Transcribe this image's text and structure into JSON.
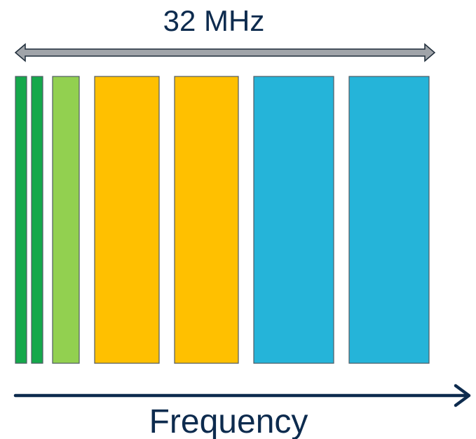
{
  "bandwidth_label": "32 MHz",
  "axis_label": "Frequency",
  "colors": {
    "text": "#0d2b4e",
    "bandwidth_arrow": "#a0a4a9",
    "frequency_arrow": "#0d2b4e",
    "block_stroke": "#4f5a63"
  },
  "channels": [
    {
      "color": "#15a84b"
    },
    {
      "color": "#15a84b"
    },
    {
      "color": "#92d050"
    },
    {
      "color": "#ffc000"
    },
    {
      "color": "#ffc000"
    },
    {
      "color": "#25b4d9"
    },
    {
      "color": "#25b4d9"
    }
  ]
}
